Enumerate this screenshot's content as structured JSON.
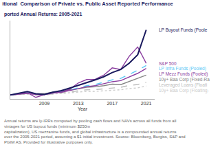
{
  "chart_data": {
    "type": "line",
    "title": "itional  Comparison of Private vs. Public Asset Reported Performance",
    "subtitle": "ported Annual Returns: 2005-2021",
    "x_label": "Year",
    "footnote": [
      "Annual returns are ly-IRRs computed by pooling cash flows and NAVs across all funds from all vintages for US buyout funds (minimum $250m",
      "capitalization), US mezzanine funds, and global infrastructure is a compounded annual returns over the 2005-2021 period, assuming a $1 initial investment. Source: Bloomberg, Burgiss, S&P and PGIM AS. Provided for illustrative purposes only."
    ],
    "x": [
      2005,
      2006,
      2007,
      2008,
      2009,
      2010,
      2011,
      2012,
      2013,
      2014,
      2015,
      2016,
      2017,
      2018,
      2019,
      2020,
      2021
    ],
    "series": [
      {
        "name": "LP Buyout Funds (Poole",
        "color": "#1a1a5e",
        "line_style": "solid",
        "values": [
          1.0,
          1.12,
          1.22,
          1.08,
          1.04,
          1.18,
          1.28,
          1.45,
          1.62,
          1.82,
          1.98,
          2.18,
          2.45,
          2.65,
          3.05,
          3.6,
          5.2
        ]
      },
      {
        "name": "S&P 500",
        "color": "#8b3fa0",
        "line_style": "solid",
        "values": [
          1.0,
          1.1,
          1.15,
          0.85,
          1.02,
          1.17,
          1.18,
          1.38,
          1.78,
          2.0,
          2.02,
          2.28,
          2.75,
          2.65,
          3.5,
          4.1,
          3.05
        ]
      },
      {
        "name": "LP Mezz Funds (Pooled)",
        "color": "#8b3fa0",
        "line_style": "solid",
        "values": [
          1.0,
          1.06,
          1.11,
          1.04,
          1.02,
          1.12,
          1.18,
          1.29,
          1.42,
          1.54,
          1.6,
          1.72,
          1.86,
          1.93,
          2.15,
          2.4,
          2.72
        ]
      },
      {
        "name": "LP Infra Funds (Pooled)",
        "color": "#5bc8f5",
        "line_style": "dashed",
        "values": [
          1.0,
          1.08,
          1.15,
          1.06,
          1.05,
          1.14,
          1.21,
          1.32,
          1.46,
          1.6,
          1.68,
          1.82,
          1.98,
          2.07,
          2.32,
          2.6,
          2.9
        ]
      },
      {
        "name": "10y+ Baa Corp (Fixed-Ra",
        "color": "#888888",
        "line_style": "solid",
        "values": [
          1.0,
          1.05,
          1.1,
          1.07,
          1.09,
          1.18,
          1.24,
          1.34,
          1.4,
          1.5,
          1.53,
          1.6,
          1.7,
          1.67,
          1.88,
          2.1,
          2.28
        ]
      },
      {
        "name": "Leveraged Loans (Floati",
        "color": "#bbbbbb",
        "line_style": "dashed",
        "values": [
          1.0,
          1.05,
          1.09,
          1.0,
          1.0,
          1.08,
          1.13,
          1.2,
          1.27,
          1.34,
          1.35,
          1.4,
          1.48,
          1.5,
          1.62,
          1.68,
          1.82
        ]
      },
      {
        "name": "10y+ Baa Corp (Floating-",
        "color": "#cccccc",
        "line_style": "dotted",
        "values": [
          1.0,
          1.03,
          1.06,
          1.01,
          1.01,
          1.06,
          1.1,
          1.15,
          1.2,
          1.24,
          1.24,
          1.27,
          1.33,
          1.34,
          1.42,
          1.46,
          1.58
        ]
      }
    ],
    "xlim": [
      2005,
      2022
    ],
    "xticks": [
      2009,
      2013,
      2017,
      2021
    ],
    "ylim": [
      0.75,
      5.8
    ],
    "yticks": [],
    "tick_labels": "x",
    "grid": false
  }
}
